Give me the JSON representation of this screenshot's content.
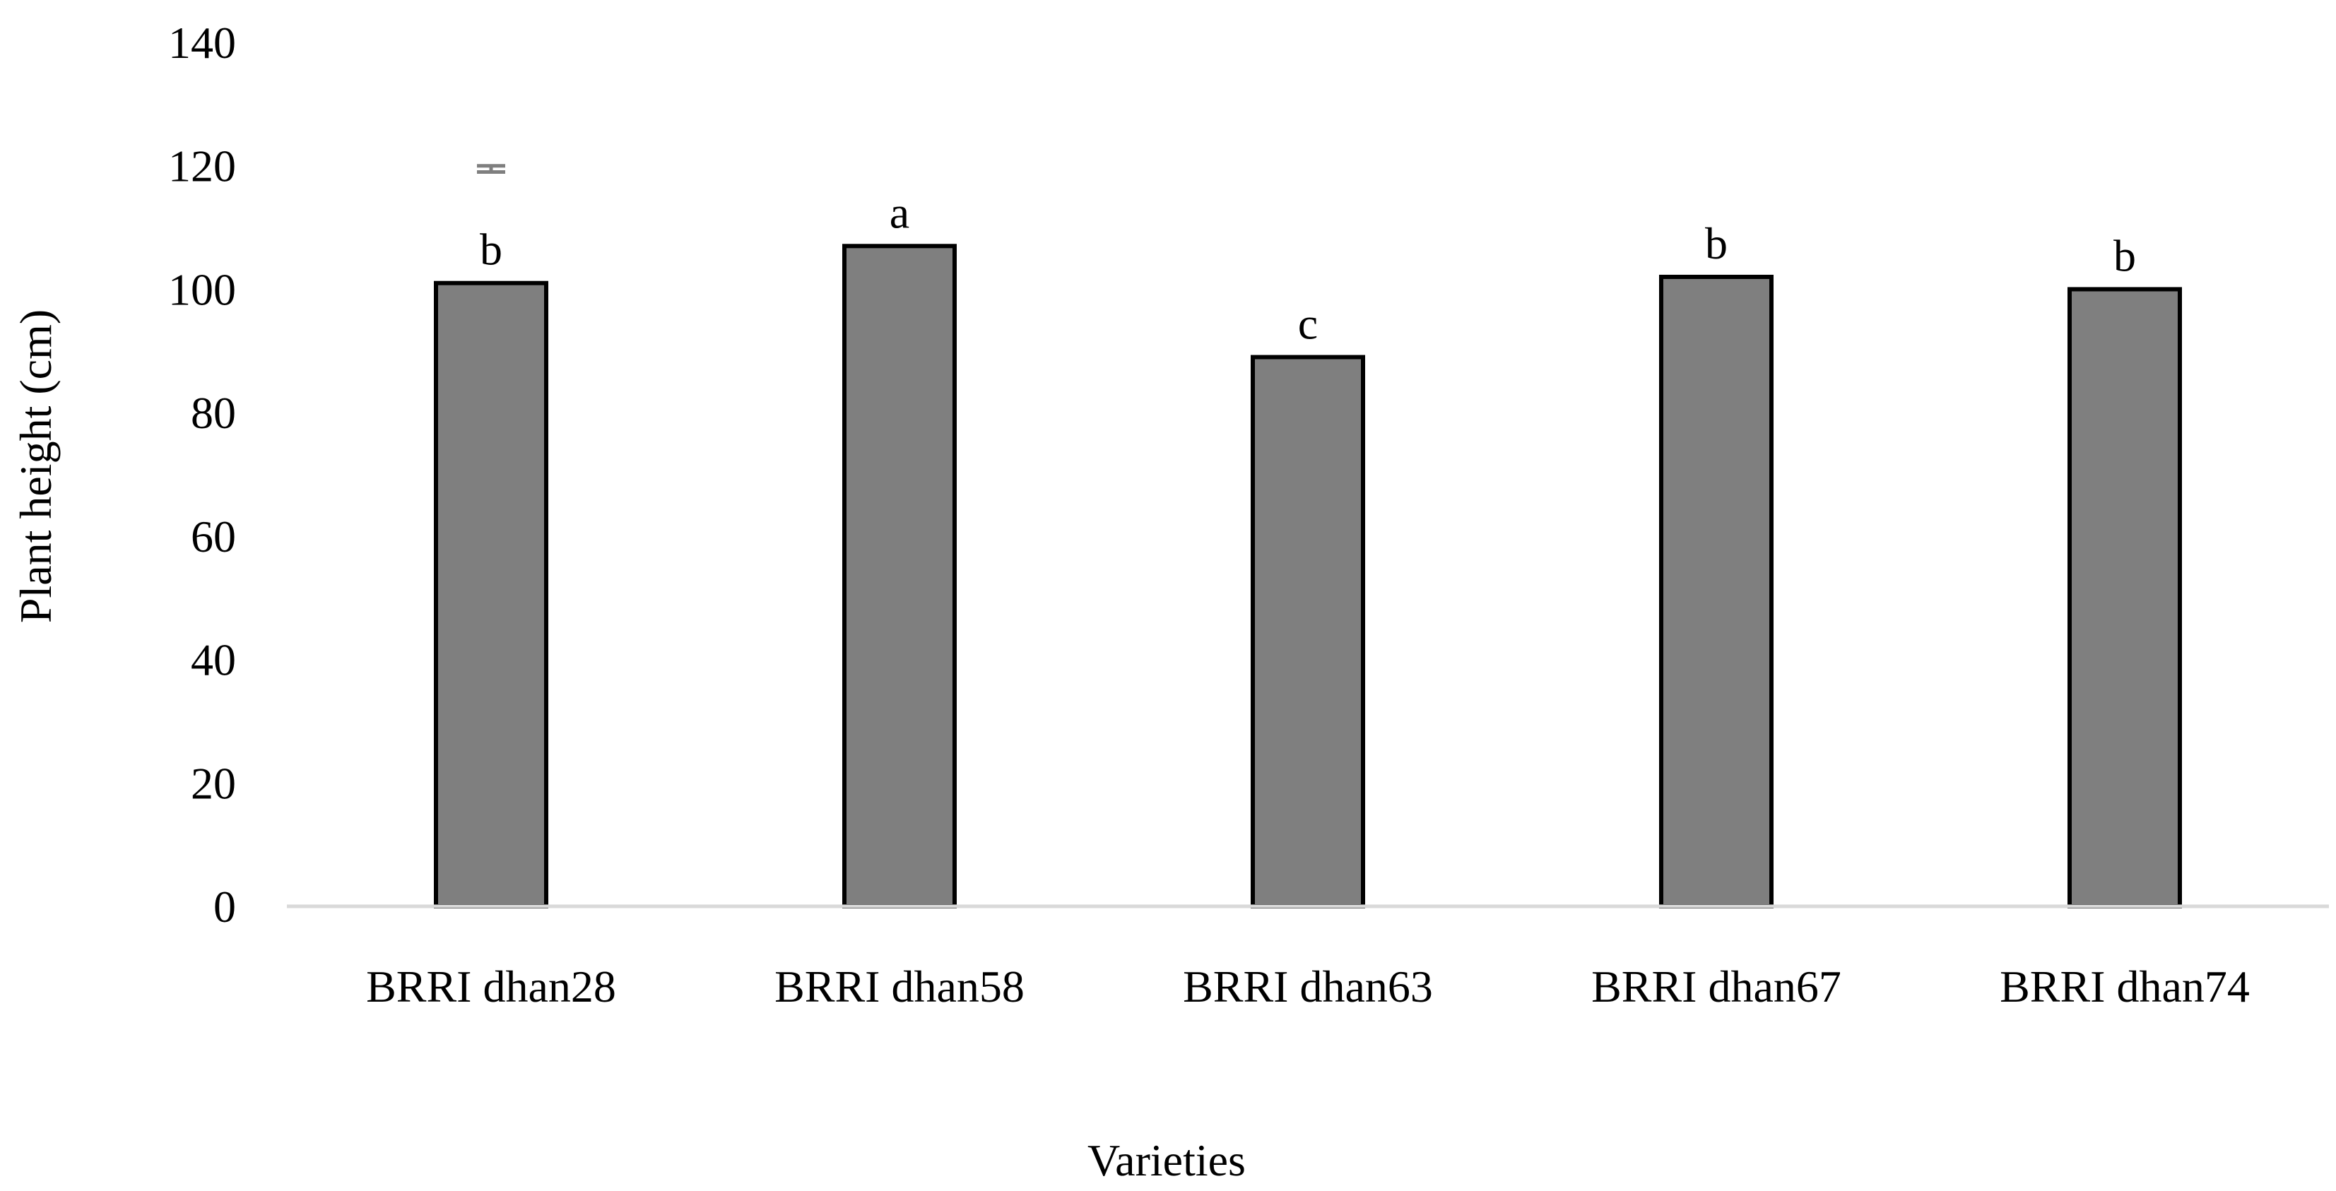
{
  "chart_data": {
    "type": "bar",
    "title": "",
    "xlabel": "Varieties",
    "ylabel": "Plant height (cm)",
    "ylim": [
      0,
      140
    ],
    "yticks": [
      0,
      20,
      40,
      60,
      80,
      100,
      120,
      140
    ],
    "categories": [
      "BRRI dhan28",
      "BRRI dhan58",
      "BRRI dhan63",
      "BRRI dhan67",
      "BRRI dhan74"
    ],
    "values": [
      101,
      107,
      89,
      102,
      100
    ],
    "significance_letters": [
      "b",
      "a",
      "c",
      "b",
      "b"
    ],
    "error_bar": {
      "category": "BRRI dhan28",
      "center": 119.5,
      "low": 119,
      "high": 120
    },
    "grid": false,
    "legend": "none",
    "colors": {
      "bar_fill": "#7f7f7f",
      "bar_stroke": "#000000",
      "axis_line": "#d9d9d9",
      "error_bar": "#7f7f7f",
      "text": "#000000"
    }
  }
}
